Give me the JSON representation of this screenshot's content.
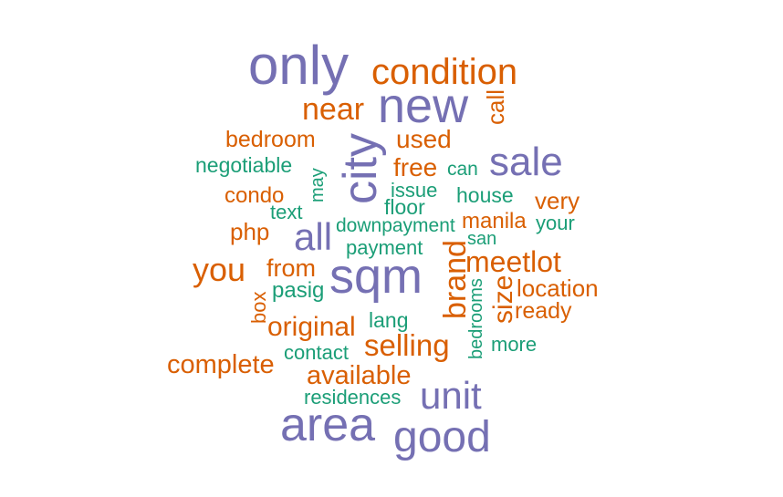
{
  "colors": {
    "purple": "#7570b3",
    "orange": "#d95f02",
    "green": "#1b9e77"
  },
  "chart_data": {
    "type": "wordcloud",
    "words": [
      {
        "text": "only",
        "weight": 10,
        "color": "purple",
        "rotated": false
      },
      {
        "text": "area",
        "weight": 10,
        "color": "purple",
        "rotated": false
      },
      {
        "text": "new",
        "weight": 9,
        "color": "purple",
        "rotated": false
      },
      {
        "text": "sqm",
        "weight": 9,
        "color": "purple",
        "rotated": false
      },
      {
        "text": "city",
        "weight": 8,
        "color": "purple",
        "rotated": true
      },
      {
        "text": "good",
        "weight": 8,
        "color": "purple",
        "rotated": false
      },
      {
        "text": "sale",
        "weight": 7,
        "color": "purple",
        "rotated": false
      },
      {
        "text": "unit",
        "weight": 7,
        "color": "purple",
        "rotated": false
      },
      {
        "text": "all",
        "weight": 6,
        "color": "purple",
        "rotated": false
      },
      {
        "text": "condition",
        "weight": 6,
        "color": "orange",
        "rotated": false
      },
      {
        "text": "brand",
        "weight": 5,
        "color": "orange",
        "rotated": true
      },
      {
        "text": "meetlot",
        "weight": 5,
        "color": "orange",
        "rotated": false
      },
      {
        "text": "near",
        "weight": 5,
        "color": "orange",
        "rotated": false
      },
      {
        "text": "you",
        "weight": 5,
        "color": "orange",
        "rotated": false
      },
      {
        "text": "selling",
        "weight": 5,
        "color": "orange",
        "rotated": false
      },
      {
        "text": "size",
        "weight": 4,
        "color": "orange",
        "rotated": true
      },
      {
        "text": "used",
        "weight": 4,
        "color": "orange",
        "rotated": false
      },
      {
        "text": "original",
        "weight": 4,
        "color": "orange",
        "rotated": false
      },
      {
        "text": "free",
        "weight": 4,
        "color": "orange",
        "rotated": false
      },
      {
        "text": "available",
        "weight": 4,
        "color": "orange",
        "rotated": false
      },
      {
        "text": "complete",
        "weight": 4,
        "color": "orange",
        "rotated": false
      },
      {
        "text": "call",
        "weight": 3,
        "color": "orange",
        "rotated": true
      },
      {
        "text": "bedroom",
        "weight": 3,
        "color": "orange",
        "rotated": false
      },
      {
        "text": "very",
        "weight": 3,
        "color": "orange",
        "rotated": false
      },
      {
        "text": "condo",
        "weight": 3,
        "color": "orange",
        "rotated": false
      },
      {
        "text": "php",
        "weight": 3,
        "color": "orange",
        "rotated": false
      },
      {
        "text": "manila",
        "weight": 3,
        "color": "orange",
        "rotated": false
      },
      {
        "text": "from",
        "weight": 3,
        "color": "orange",
        "rotated": false
      },
      {
        "text": "location",
        "weight": 3,
        "color": "orange",
        "rotated": false
      },
      {
        "text": "ready",
        "weight": 3,
        "color": "orange",
        "rotated": false
      },
      {
        "text": "box",
        "weight": 3,
        "color": "orange",
        "rotated": true
      },
      {
        "text": "negotiable",
        "weight": 2,
        "color": "green",
        "rotated": false
      },
      {
        "text": "can",
        "weight": 2,
        "color": "green",
        "rotated": false
      },
      {
        "text": "may",
        "weight": 2,
        "color": "green",
        "rotated": true
      },
      {
        "text": "issue",
        "weight": 2,
        "color": "green",
        "rotated": false
      },
      {
        "text": "house",
        "weight": 2,
        "color": "green",
        "rotated": false
      },
      {
        "text": "text",
        "weight": 2,
        "color": "green",
        "rotated": false
      },
      {
        "text": "floor",
        "weight": 2,
        "color": "green",
        "rotated": false
      },
      {
        "text": "downpayment",
        "weight": 2,
        "color": "green",
        "rotated": false
      },
      {
        "text": "your",
        "weight": 2,
        "color": "green",
        "rotated": false
      },
      {
        "text": "payment",
        "weight": 2,
        "color": "green",
        "rotated": false
      },
      {
        "text": "san",
        "weight": 2,
        "color": "green",
        "rotated": false
      },
      {
        "text": "pasig",
        "weight": 2,
        "color": "green",
        "rotated": false
      },
      {
        "text": "lang",
        "weight": 2,
        "color": "green",
        "rotated": false
      },
      {
        "text": "bedrooms",
        "weight": 2,
        "color": "green",
        "rotated": true
      },
      {
        "text": "contact",
        "weight": 2,
        "color": "green",
        "rotated": false
      },
      {
        "text": "more",
        "weight": 2,
        "color": "green",
        "rotated": false
      },
      {
        "text": "residences",
        "weight": 2,
        "color": "green",
        "rotated": false
      }
    ]
  }
}
